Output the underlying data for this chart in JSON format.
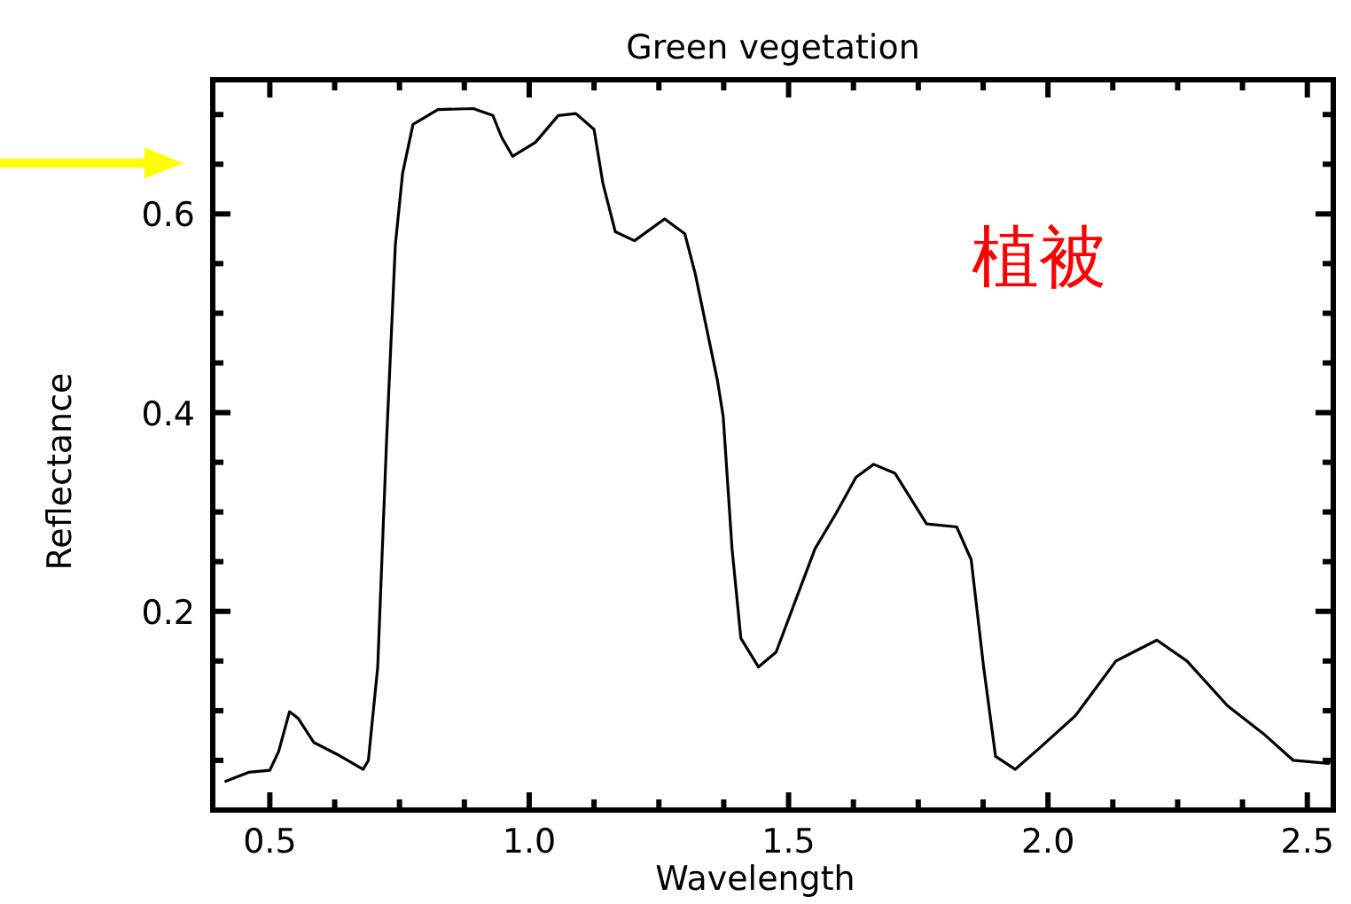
{
  "chart_data": {
    "type": "line",
    "title": "Green vegetation",
    "xlabel": "Wavelength",
    "ylabel": "Reflectance",
    "annotations": [
      "植被"
    ],
    "xlim": [
      0.39,
      2.55
    ],
    "ylim": [
      0,
      0.735
    ],
    "xticks": [
      {
        "value": 0.5,
        "label": "0.5"
      },
      {
        "value": 0.625,
        "label": null
      },
      {
        "value": 0.75,
        "label": null
      },
      {
        "value": 0.875,
        "label": null
      },
      {
        "value": 1.0,
        "label": "1.0"
      },
      {
        "value": 1.125,
        "label": null
      },
      {
        "value": 1.25,
        "label": null
      },
      {
        "value": 1.375,
        "label": null
      },
      {
        "value": 1.5,
        "label": "1.5"
      },
      {
        "value": 1.625,
        "label": null
      },
      {
        "value": 1.75,
        "label": null
      },
      {
        "value": 1.875,
        "label": null
      },
      {
        "value": 2.0,
        "label": "2.0"
      },
      {
        "value": 2.125,
        "label": null
      },
      {
        "value": 2.25,
        "label": null
      },
      {
        "value": 2.375,
        "label": null
      },
      {
        "value": 2.5,
        "label": "2.5"
      }
    ],
    "yticks": [
      {
        "value": 0.05,
        "label": null
      },
      {
        "value": 0.1,
        "label": null
      },
      {
        "value": 0.15,
        "label": null
      },
      {
        "value": 0.2,
        "label": "0.2"
      },
      {
        "value": 0.25,
        "label": null
      },
      {
        "value": 0.3,
        "label": null
      },
      {
        "value": 0.35,
        "label": null
      },
      {
        "value": 0.4,
        "label": "0.4"
      },
      {
        "value": 0.45,
        "label": null
      },
      {
        "value": 0.5,
        "label": null
      },
      {
        "value": 0.55,
        "label": null
      },
      {
        "value": 0.6,
        "label": "0.6"
      },
      {
        "value": 0.65,
        "label": null
      },
      {
        "value": 0.7,
        "label": null
      }
    ],
    "grid": false,
    "series": [
      {
        "color": "#000000",
        "x": [
          0.415,
          0.459,
          0.5,
          0.517,
          0.538,
          0.555,
          0.585,
          0.63,
          0.68,
          0.69,
          0.708,
          0.725,
          0.742,
          0.756,
          0.776,
          0.824,
          0.892,
          0.93,
          0.947,
          0.968,
          1.012,
          1.056,
          1.09,
          1.125,
          1.142,
          1.166,
          1.203,
          1.261,
          1.3,
          1.32,
          1.363,
          1.374,
          1.391,
          1.408,
          1.442,
          1.476,
          1.517,
          1.551,
          1.592,
          1.63,
          1.664,
          1.705,
          1.766,
          1.824,
          1.852,
          1.876,
          1.899,
          1.937,
          1.985,
          2.053,
          2.131,
          2.21,
          2.268,
          2.346,
          2.415,
          2.473,
          2.541
        ],
        "values": [
          0.029,
          0.038,
          0.04,
          0.059,
          0.099,
          0.092,
          0.068,
          0.056,
          0.041,
          0.05,
          0.144,
          0.371,
          0.569,
          0.641,
          0.69,
          0.705,
          0.706,
          0.699,
          0.677,
          0.658,
          0.672,
          0.699,
          0.701,
          0.685,
          0.631,
          0.582,
          0.573,
          0.595,
          0.58,
          0.54,
          0.432,
          0.396,
          0.263,
          0.173,
          0.144,
          0.159,
          0.216,
          0.263,
          0.299,
          0.335,
          0.348,
          0.339,
          0.288,
          0.285,
          0.252,
          0.144,
          0.054,
          0.041,
          0.063,
          0.095,
          0.15,
          0.171,
          0.15,
          0.105,
          0.077,
          0.05,
          0.047
        ]
      }
    ]
  }
}
